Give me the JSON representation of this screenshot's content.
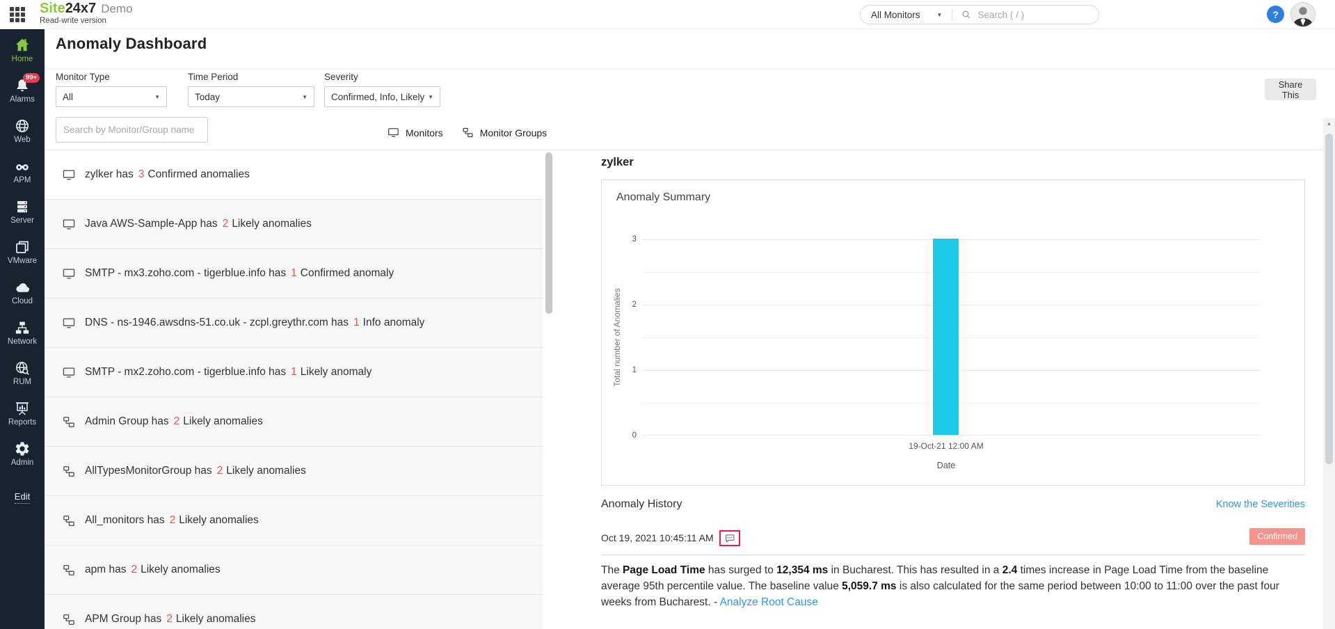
{
  "colors": {
    "accent_green": "#8dc63f",
    "sidebar_bg": "#182330",
    "count_red": "#e2574e",
    "bar_cyan": "#1ccbe8",
    "link_blue": "#2f9ade",
    "badge_red": "#e93a52",
    "confirmed_bg": "#f3938c",
    "highlight_red": "#ec1c50"
  },
  "header": {
    "logo_site": "Site",
    "logo_suffix": "24x7",
    "logo_mode": "Demo",
    "subtitle": "Read-write version",
    "scope_dropdown": "All Monitors",
    "search_placeholder": "Search ( / )",
    "help_glyph": "?"
  },
  "sidebar": {
    "items": [
      {
        "label": "Home",
        "icon": "home-icon",
        "active": true
      },
      {
        "label": "Alarms",
        "icon": "bell-icon",
        "badge": "99+"
      },
      {
        "label": "Web",
        "icon": "globe-icon"
      },
      {
        "label": "APM",
        "icon": "binoculars-icon"
      },
      {
        "label": "Server",
        "icon": "server-icon"
      },
      {
        "label": "VMware",
        "icon": "vmware-icon"
      },
      {
        "label": "Cloud",
        "icon": "cloud-icon"
      },
      {
        "label": "Network",
        "icon": "network-icon"
      },
      {
        "label": "RUM",
        "icon": "rum-icon"
      },
      {
        "label": "Reports",
        "icon": "reports-icon"
      },
      {
        "label": "Admin",
        "icon": "gear-icon"
      },
      {
        "label": "Edit",
        "icon": null,
        "edit": true
      }
    ]
  },
  "page": {
    "title": "Anomaly Dashboard",
    "share_button": "Share This",
    "filters": [
      {
        "label": "Monitor Type",
        "value": "All"
      },
      {
        "label": "Time Period",
        "value": "Today"
      },
      {
        "label": "Severity",
        "value": "Confirmed, Info, Likely"
      }
    ],
    "list_search_placeholder": "Search by Monitor/Group name",
    "tabs": [
      {
        "label": "Monitors",
        "icon": "monitor-icon"
      },
      {
        "label": "Monitor Groups",
        "icon": "monitor-group-icon"
      }
    ]
  },
  "monitor_list": [
    {
      "type": "monitor",
      "text_before_count": "zylker has",
      "count": "3",
      "text_after_count": "Confirmed anomalies",
      "selected": true
    },
    {
      "type": "monitor",
      "text_before_count": "Java AWS-Sample-App has",
      "count": "2",
      "text_after_count": "Likely anomalies"
    },
    {
      "type": "monitor",
      "text_before_count": "SMTP - mx3.zoho.com - tigerblue.info has",
      "count": "1",
      "text_after_count": "Confirmed anomaly"
    },
    {
      "type": "monitor",
      "text_before_count": "DNS - ns-1946.awsdns-51.co.uk - zcpl.greythr.com has",
      "count": "1",
      "text_after_count": "Info anomaly"
    },
    {
      "type": "monitor",
      "text_before_count": "SMTP - mx2.zoho.com - tigerblue.info has",
      "count": "1",
      "text_after_count": "Likely anomaly"
    },
    {
      "type": "group",
      "text_before_count": "Admin Group has",
      "count": "2",
      "text_after_count": "Likely anomalies"
    },
    {
      "type": "group",
      "text_before_count": "AllTypesMonitorGroup has",
      "count": "2",
      "text_after_count": "Likely anomalies"
    },
    {
      "type": "group",
      "text_before_count": "All_monitors has",
      "count": "2",
      "text_after_count": "Likely anomalies"
    },
    {
      "type": "group",
      "text_before_count": "apm has",
      "count": "2",
      "text_after_count": "Likely anomalies"
    },
    {
      "type": "group",
      "text_before_count": "APM Group has",
      "count": "2",
      "text_after_count": "Likely anomalies"
    }
  ],
  "detail": {
    "monitor_name": "zylker",
    "history": {
      "title": "Anomaly History",
      "severities_link": "Know the Severities",
      "entry_time": "Oct 19, 2021 10:45:11 AM",
      "badge": "Confirmed",
      "description": [
        {
          "text": "The "
        },
        {
          "text": "Page Load Time",
          "bold": true
        },
        {
          "text": " has surged to "
        },
        {
          "text": "12,354 ms",
          "bold": true
        },
        {
          "text": " in Bucharest. This has resulted in a "
        },
        {
          "text": "2.4",
          "bold": true
        },
        {
          "text": " times increase in Page Load Time from the baseline average 95th percentile value. The baseline value "
        },
        {
          "text": "5,059.7 ms",
          "bold": true
        },
        {
          "text": " is also calculated for the same period between 10:00 to 11:00 over the past four weeks from Bucharest.  - "
        },
        {
          "text": "Analyze Root Cause",
          "link": true
        }
      ]
    }
  },
  "chart_data": {
    "type": "bar",
    "title": "Anomaly Summary",
    "categories": [
      "19-Oct-21 12:00 AM"
    ],
    "values": [
      3
    ],
    "xlabel": "Date",
    "ylabel": "Total number of Anomalies",
    "ylim": [
      0,
      3
    ],
    "yticks": [
      3,
      2,
      1,
      0
    ],
    "grid": true,
    "bar_color": "#1ccbe8"
  }
}
